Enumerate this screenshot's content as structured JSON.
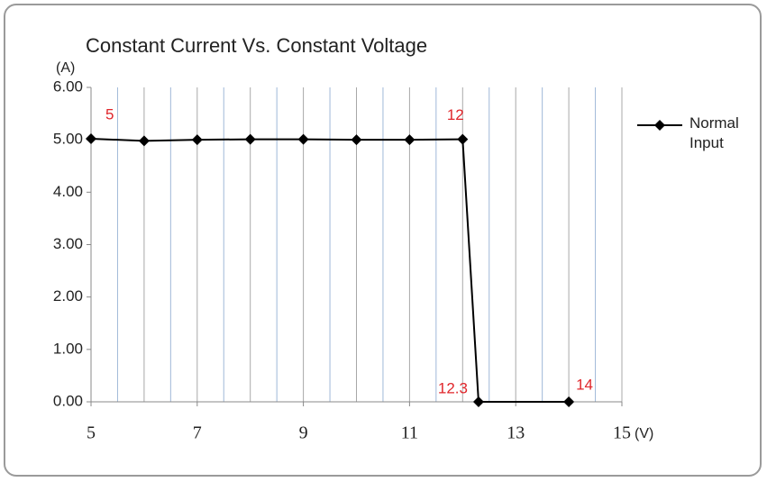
{
  "chart_data": {
    "type": "line",
    "title": "Constant Current Vs. Constant Voltage",
    "y_unit": "(A)",
    "x_unit": "(V)",
    "x": [
      5,
      6,
      7,
      8,
      9,
      10,
      11,
      12,
      12.3,
      14
    ],
    "series": [
      {
        "name": "Normal Input",
        "color": "#000000",
        "values": [
          5.02,
          4.98,
          5.0,
          5.01,
          5.01,
          5.0,
          5.0,
          5.01,
          0,
          0
        ]
      }
    ],
    "xlim": [
      5,
      15
    ],
    "xticks": [
      5,
      7,
      9,
      11,
      13,
      15
    ],
    "ylim": [
      0,
      6
    ],
    "yticks": [
      {
        "value": 0,
        "label": "0.00"
      },
      {
        "value": 1,
        "label": "1.00"
      },
      {
        "value": 2,
        "label": "2.00"
      },
      {
        "value": 3,
        "label": "3.00"
      },
      {
        "value": 4,
        "label": "4.00"
      },
      {
        "value": 5,
        "label": "5.00"
      },
      {
        "value": 6,
        "label": "6.00"
      }
    ],
    "annotations": [
      "5",
      "12",
      "12.3",
      "14"
    ],
    "annotation_color": "#e0262b",
    "grid": true,
    "legend": "right"
  }
}
